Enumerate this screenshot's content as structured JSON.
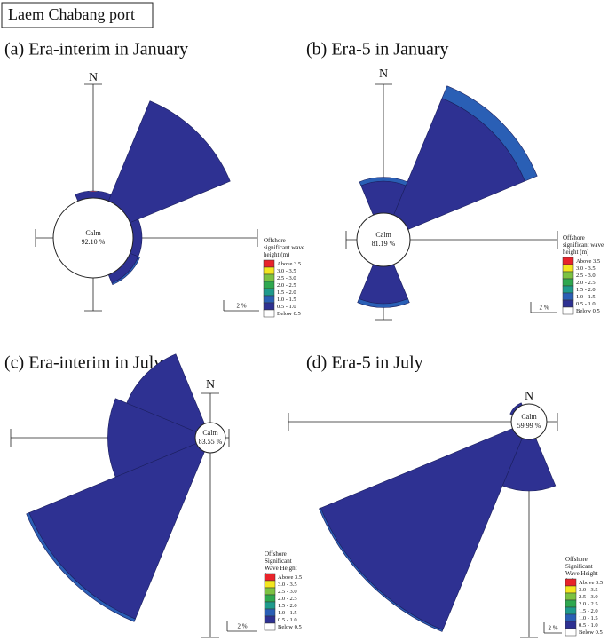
{
  "header": "Laem Chabang port",
  "chart_data": [
    {
      "type": "wave-rose",
      "title": "(a) Era-interim in January",
      "categories": [
        "N",
        null,
        null,
        null,
        null,
        null,
        null,
        null
      ],
      "calm_label": "Calm",
      "calm": {
        "value": 92.1,
        "label": "92.10 %"
      },
      "legend_title": "Offshore significant wave height (m)",
      "scale": {
        "value": 2,
        "label": "2 %"
      },
      "series": [
        {
          "name": "Above 3.5",
          "color": "#e8232a",
          "values": [
            0,
            0,
            0,
            0,
            0,
            0,
            0,
            0
          ]
        },
        {
          "name": "3.0 - 3.5",
          "color": "#f3e620",
          "values": [
            0,
            0,
            0,
            0,
            0,
            0,
            0,
            0
          ]
        },
        {
          "name": "2.5 - 3.0",
          "color": "#7cc242",
          "values": [
            0,
            0,
            0,
            0,
            0,
            0,
            0,
            0
          ]
        },
        {
          "name": "2.0 - 2.5",
          "color": "#2fa84f",
          "values": [
            0,
            0,
            0,
            0,
            0,
            0,
            0,
            0
          ]
        },
        {
          "name": "1.5 - 2.0",
          "color": "#1f9a8c",
          "values": [
            0,
            0,
            0,
            0,
            0,
            0,
            0,
            0
          ]
        },
        {
          "name": "1.0 - 1.5",
          "color": "#2a5fb5",
          "values": [
            0,
            0,
            0,
            0.1,
            0,
            0,
            0,
            0
          ]
        },
        {
          "name": "0.5 - 1.0",
          "color": "#2e3192",
          "values": [
            0.4,
            6.1,
            0.5,
            0.5,
            0,
            0,
            0,
            0
          ]
        },
        {
          "name": "Below 0.5",
          "color": "#ffffff",
          "values": [
            0,
            0,
            0,
            0,
            0,
            0,
            0,
            0
          ]
        }
      ]
    },
    {
      "type": "wave-rose",
      "title": "(b) Era-5 in January",
      "categories": [
        "N",
        null,
        null,
        null,
        null,
        null,
        null,
        null
      ],
      "calm_label": "Calm",
      "calm": {
        "value": 81.19,
        "label": "81.19 %"
      },
      "legend_title": "Offshore significant wave height (m)",
      "scale": {
        "value": 2,
        "label": "2 %"
      },
      "series": [
        {
          "name": "Above 3.5",
          "color": "#e8232a",
          "values": [
            0,
            0,
            0,
            0,
            0,
            0,
            0,
            0
          ]
        },
        {
          "name": "3.0 - 3.5",
          "color": "#f3e620",
          "values": [
            0,
            0,
            0,
            0,
            0,
            0,
            0,
            0
          ]
        },
        {
          "name": "2.5 - 3.0",
          "color": "#7cc242",
          "values": [
            0,
            0,
            0,
            0,
            0,
            0,
            0,
            0
          ]
        },
        {
          "name": "2.0 - 2.5",
          "color": "#2fa84f",
          "values": [
            0,
            0,
            0,
            0,
            0,
            0,
            0,
            0
          ]
        },
        {
          "name": "1.5 - 2.0",
          "color": "#1f9a8c",
          "values": [
            0,
            0,
            0,
            0,
            0,
            0,
            0,
            0
          ]
        },
        {
          "name": "1.0 - 1.5",
          "color": "#2a5fb5",
          "values": [
            0.3,
            1.0,
            0,
            0,
            0.3,
            0,
            0,
            0
          ]
        },
        {
          "name": "0.5 - 1.0",
          "color": "#2e3192",
          "values": [
            2.4,
            9.5,
            0,
            0,
            2.8,
            0,
            0,
            0
          ]
        },
        {
          "name": "Below 0.5",
          "color": "#ffffff",
          "values": [
            0,
            0,
            0,
            0,
            0,
            0,
            0,
            0
          ]
        }
      ]
    },
    {
      "type": "wave-rose",
      "title": "(c) Era-interim in July",
      "categories": [
        "N",
        null,
        null,
        null,
        null,
        null,
        null,
        null
      ],
      "calm_label": "Calm",
      "calm": {
        "value": 83.55,
        "label": "83.55 %"
      },
      "legend_title": "Offshore Significant Wave Height (m)",
      "scale": {
        "value": 2,
        "label": "2 %"
      },
      "series": [
        {
          "name": "Above 3.5",
          "color": "#e8232a",
          "values": [
            0,
            0,
            0,
            0,
            0,
            0,
            0,
            0
          ]
        },
        {
          "name": "3.0 - 3.5",
          "color": "#f3e620",
          "values": [
            0,
            0,
            0,
            0,
            0,
            0,
            0,
            0
          ]
        },
        {
          "name": "2.5 - 3.0",
          "color": "#7cc242",
          "values": [
            0,
            0,
            0,
            0,
            0,
            0,
            0,
            0
          ]
        },
        {
          "name": "2.0 - 2.5",
          "color": "#2fa84f",
          "values": [
            0,
            0,
            0,
            0,
            0,
            0,
            0,
            0
          ]
        },
        {
          "name": "1.5 - 2.0",
          "color": "#1f9a8c",
          "values": [
            0,
            0,
            0,
            0,
            0,
            0,
            0,
            0
          ]
        },
        {
          "name": "1.0 - 1.5",
          "color": "#2a5fb5",
          "values": [
            0,
            0,
            0,
            0,
            0,
            0.2,
            0,
            0
          ]
        },
        {
          "name": "0.5 - 1.0",
          "color": "#2e3192",
          "values": [
            0,
            0,
            0,
            0,
            0,
            12.0,
            5.8,
            5.0
          ]
        },
        {
          "name": "Below 0.5",
          "color": "#ffffff",
          "values": [
            0,
            0,
            0,
            0,
            0,
            0,
            0,
            0
          ]
        }
      ]
    },
    {
      "type": "wave-rose",
      "title": "(d) Era-5 in July",
      "categories": [
        "N",
        null,
        null,
        null,
        null,
        null,
        null,
        null
      ],
      "calm_label": "Calm",
      "calm": {
        "value": 59.99,
        "label": "59.99 %"
      },
      "legend_title": "Offshore Significant Wave Height (m)",
      "scale": {
        "value": 2,
        "label": "2 %"
      },
      "series": [
        {
          "name": "Above 3.5",
          "color": "#e8232a",
          "values": [
            0,
            0,
            0,
            0,
            0,
            0,
            0,
            0
          ]
        },
        {
          "name": "3.0 - 3.5",
          "color": "#f3e620",
          "values": [
            0,
            0,
            0,
            0,
            0,
            0,
            0,
            0
          ]
        },
        {
          "name": "2.5 - 3.0",
          "color": "#7cc242",
          "values": [
            0,
            0,
            0,
            0,
            0,
            0,
            0,
            0
          ]
        },
        {
          "name": "2.0 - 2.5",
          "color": "#2fa84f",
          "values": [
            0,
            0,
            0,
            0,
            0,
            0,
            0,
            0
          ]
        },
        {
          "name": "1.5 - 2.0",
          "color": "#1f9a8c",
          "values": [
            0,
            0,
            0,
            0,
            0,
            0,
            0,
            0
          ]
        },
        {
          "name": "1.0 - 1.5",
          "color": "#2a5fb5",
          "values": [
            0,
            0,
            0,
            0,
            0,
            0.2,
            0,
            0
          ]
        },
        {
          "name": "0.5 - 1.0",
          "color": "#2e3192",
          "values": [
            0,
            0,
            0,
            0,
            5.8,
            23.4,
            0,
            0.3
          ]
        },
        {
          "name": "Below 0.5",
          "color": "#ffffff",
          "values": [
            0,
            0,
            0,
            0,
            0,
            0,
            0,
            0
          ]
        }
      ]
    }
  ]
}
